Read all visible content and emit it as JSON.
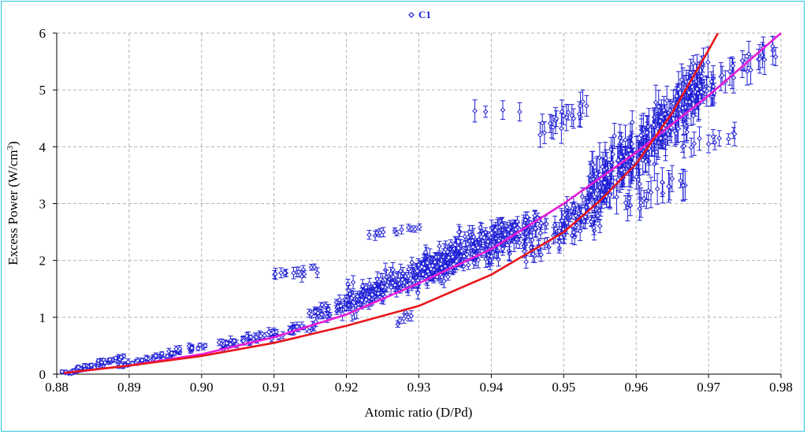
{
  "chart_data": {
    "type": "scatter",
    "title": "",
    "xlabel": "Atomic ratio (D/Pd)",
    "ylabel_main": "Excess Power (W/cm",
    "ylabel_sup": "3",
    "ylabel_close": ")",
    "xlim": [
      0.88,
      0.98
    ],
    "ylim": [
      0,
      6
    ],
    "x_ticks": [
      "0.88",
      "0.89",
      "0.90",
      "0.91",
      "0.92",
      "0.93",
      "0.94",
      "0.95",
      "0.96",
      "0.97",
      "0.98"
    ],
    "y_ticks": [
      "0",
      "1",
      "2",
      "3",
      "4",
      "5",
      "6"
    ],
    "grid": true,
    "legend_position": "top-center",
    "series": [
      {
        "name": "C1",
        "marker": "open-diamond",
        "color": "#1f1fd6",
        "error_bars": true,
        "clusters": [
          {
            "x": [
              0.881,
              0.889
            ],
            "y": [
              0.0,
              0.3
            ],
            "n": 60,
            "spread": 0.04,
            "err": 0.03
          },
          {
            "x": [
              0.889,
              0.9
            ],
            "y": [
              0.15,
              0.5
            ],
            "n": 50,
            "spread": 0.05,
            "err": 0.04
          },
          {
            "x": [
              0.902,
              0.915
            ],
            "y": [
              0.5,
              0.85
            ],
            "n": 55,
            "spread": 0.07,
            "err": 0.06
          },
          {
            "x": [
              0.91,
              0.916
            ],
            "y": [
              1.75,
              1.85
            ],
            "n": 14,
            "spread": 0.08,
            "err": 0.08
          },
          {
            "x": [
              0.915,
              0.925
            ],
            "y": [
              1.0,
              1.5
            ],
            "n": 60,
            "spread": 0.12,
            "err": 0.07
          },
          {
            "x": [
              0.92,
              0.935
            ],
            "y": [
              1.3,
              2.0
            ],
            "n": 160,
            "spread": 0.25,
            "err": 0.1
          },
          {
            "x": [
              0.923,
              0.93
            ],
            "y": [
              2.45,
              2.55
            ],
            "n": 12,
            "spread": 0.05,
            "err": 0.06
          },
          {
            "x": [
              0.927,
              0.929
            ],
            "y": [
              0.9,
              1.1
            ],
            "n": 6,
            "spread": 0.08,
            "err": 0.08
          },
          {
            "x": [
              0.93,
              0.945
            ],
            "y": [
              1.8,
              2.5
            ],
            "n": 160,
            "spread": 0.25,
            "err": 0.12
          },
          {
            "x": [
              0.935,
              0.947
            ],
            "y": [
              2.3,
              2.7
            ],
            "n": 60,
            "spread": 0.15,
            "err": 0.12
          },
          {
            "x": [
              0.945,
              0.955
            ],
            "y": [
              2.2,
              2.8
            ],
            "n": 50,
            "spread": 0.2,
            "err": 0.12
          },
          {
            "x": [
              0.949,
              0.956
            ],
            "y": [
              2.6,
              3.3
            ],
            "n": 40,
            "spread": 0.25,
            "err": 0.15
          },
          {
            "x": [
              0.9375,
              0.9435
            ],
            "y": [
              4.65,
              4.65
            ],
            "n": 4,
            "spread": 0.05,
            "err": 0.15
          },
          {
            "x": [
              0.947,
              0.953
            ],
            "y": [
              4.3,
              4.7
            ],
            "n": 20,
            "spread": 0.2,
            "err": 0.2
          },
          {
            "x": [
              0.954,
              0.97
            ],
            "y": [
              3.2,
              5.2
            ],
            "n": 260,
            "spread": 0.45,
            "err": 0.22
          },
          {
            "x": [
              0.958,
              0.967
            ],
            "y": [
              3.0,
              3.4
            ],
            "n": 20,
            "spread": 0.2,
            "err": 0.2
          },
          {
            "x": [
              0.966,
              0.974
            ],
            "y": [
              4.0,
              4.2
            ],
            "n": 12,
            "spread": 0.1,
            "err": 0.15
          },
          {
            "x": [
              0.968,
              0.98
            ],
            "y": [
              5.0,
              5.7
            ],
            "n": 30,
            "spread": 0.15,
            "err": 0.2
          }
        ]
      },
      {
        "name": "",
        "kind": "fit-curve",
        "color": "#e8161b",
        "x": [
          0.881,
          0.89,
          0.9,
          0.91,
          0.92,
          0.93,
          0.94,
          0.95,
          0.955,
          0.96,
          0.965,
          0.97,
          0.9713
        ],
        "y": [
          0.02,
          0.15,
          0.32,
          0.55,
          0.85,
          1.2,
          1.75,
          2.5,
          3.05,
          3.7,
          4.6,
          5.7,
          6.0
        ]
      },
      {
        "name": "",
        "kind": "fit-curve",
        "color": "#e81cd6",
        "x": [
          0.881,
          0.89,
          0.9,
          0.91,
          0.92,
          0.93,
          0.94,
          0.95,
          0.96,
          0.97,
          0.98
        ],
        "y": [
          0.02,
          0.15,
          0.35,
          0.65,
          1.05,
          1.6,
          2.2,
          3.0,
          3.9,
          4.9,
          6.0
        ]
      }
    ]
  }
}
